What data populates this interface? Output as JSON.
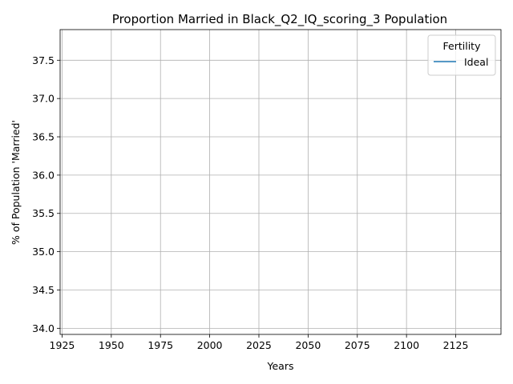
{
  "chart_data": {
    "type": "line",
    "title": "Proportion Married in Black_Q2_IQ_scoring_3 Population",
    "xlabel": "Years",
    "ylabel": "% of Population 'Married'",
    "xlim": [
      1924,
      2148
    ],
    "ylim": [
      33.92,
      37.9
    ],
    "xticks": [
      1925,
      1950,
      1975,
      2000,
      2025,
      2050,
      2075,
      2100,
      2125
    ],
    "yticks": [
      34.0,
      34.5,
      35.0,
      35.5,
      36.0,
      36.5,
      37.0,
      37.5
    ],
    "ytick_labels": [
      "34.0",
      "34.5",
      "35.0",
      "35.5",
      "36.0",
      "36.5",
      "37.0",
      "37.5"
    ],
    "grid": true,
    "legend": {
      "title": "Fertility",
      "placement": "top-right"
    },
    "series": [
      {
        "name": "Ideal",
        "color": "#1f77b4",
        "x": [],
        "y": []
      }
    ]
  }
}
